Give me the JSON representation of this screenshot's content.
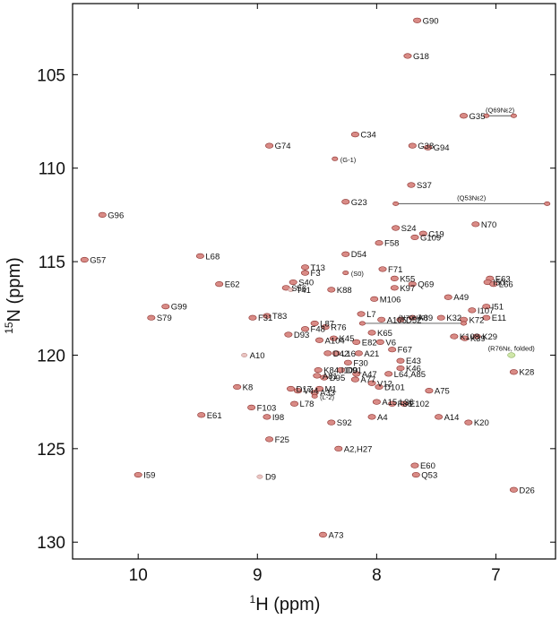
{
  "chart_data": {
    "type": "scatter",
    "title": "",
    "xlabel": "H (ppm)",
    "xlabel_sup": "1",
    "ylabel": "N (ppm)",
    "ylabel_sup": "15",
    "xlim": [
      10.55,
      6.5
    ],
    "ylim": [
      101.2,
      130.9
    ],
    "x_reversed": true,
    "y_reversed": true,
    "x_ticks": [
      10,
      9,
      8,
      7
    ],
    "y_ticks": [
      105,
      110,
      115,
      120,
      125,
      130
    ],
    "grid": false,
    "peaks": [
      {
        "label": "G90",
        "h": 7.66,
        "n": 102.1
      },
      {
        "label": "G18",
        "h": 7.74,
        "n": 104.0
      },
      {
        "label": "G35",
        "h": 7.27,
        "n": 107.2
      },
      {
        "label": "(Q69Nε2)",
        "h": 7.08,
        "n": 107.2,
        "style": "small",
        "pair_h": 6.85
      },
      {
        "label": "C34",
        "h": 8.18,
        "n": 108.2
      },
      {
        "label": "G74",
        "h": 8.9,
        "n": 108.8
      },
      {
        "label": "G38",
        "h": 7.7,
        "n": 108.8
      },
      {
        "label": "G94",
        "h": 7.57,
        "n": 108.9
      },
      {
        "label": "(G-1)",
        "h": 8.35,
        "n": 109.5,
        "style": "small"
      },
      {
        "label": "S37",
        "h": 7.71,
        "n": 110.9
      },
      {
        "label": "(Q53Nε2)",
        "h": 7.84,
        "n": 111.9,
        "style": "small",
        "pair_h": 6.57
      },
      {
        "label": "G23",
        "h": 8.26,
        "n": 111.8
      },
      {
        "label": "G96",
        "h": 10.3,
        "n": 112.5
      },
      {
        "label": "S24",
        "h": 7.84,
        "n": 113.2
      },
      {
        "label": "C19",
        "h": 7.61,
        "n": 113.5
      },
      {
        "label": "N70",
        "h": 7.17,
        "n": 113.0
      },
      {
        "label": "G109",
        "h": 7.68,
        "n": 113.7
      },
      {
        "label": "F58",
        "h": 7.98,
        "n": 114.0
      },
      {
        "label": "D54",
        "h": 8.26,
        "n": 114.6
      },
      {
        "label": "G57",
        "h": 10.45,
        "n": 114.9
      },
      {
        "label": "L68",
        "h": 9.48,
        "n": 114.7
      },
      {
        "label": "T13",
        "h": 8.6,
        "n": 115.3
      },
      {
        "label": "F71",
        "h": 7.95,
        "n": 115.4
      },
      {
        "label": "(S0)",
        "h": 8.26,
        "n": 115.6,
        "style": "small"
      },
      {
        "label": "F3",
        "h": 8.6,
        "n": 115.6
      },
      {
        "label": "K55",
        "h": 7.85,
        "n": 115.9
      },
      {
        "label": "E63",
        "h": 7.05,
        "n": 115.9
      },
      {
        "label": "S40",
        "h": 8.7,
        "n": 116.1
      },
      {
        "label": "Q69",
        "h": 7.7,
        "n": 116.2
      },
      {
        "label": "I50",
        "h": 7.07,
        "n": 116.1
      },
      {
        "label": "L66",
        "h": 7.02,
        "n": 116.2
      },
      {
        "label": "E62",
        "h": 9.32,
        "n": 116.2
      },
      {
        "label": "S56",
        "h": 8.76,
        "n": 116.4
      },
      {
        "label": "T41",
        "h": 8.72,
        "n": 116.5,
        "style": "faint"
      },
      {
        "label": "K88",
        "h": 8.38,
        "n": 116.5
      },
      {
        "label": "K97",
        "h": 7.85,
        "n": 116.4
      },
      {
        "label": "A49",
        "h": 7.4,
        "n": 116.9
      },
      {
        "label": "M106",
        "h": 8.02,
        "n": 117.0
      },
      {
        "label": "G99",
        "h": 9.77,
        "n": 117.4
      },
      {
        "label": "I107",
        "h": 7.2,
        "n": 117.6
      },
      {
        "label": "I51",
        "h": 7.08,
        "n": 117.4
      },
      {
        "label": "T83",
        "h": 8.92,
        "n": 117.9
      },
      {
        "label": "F31",
        "h": 9.04,
        "n": 118.0
      },
      {
        "label": "L7",
        "h": 8.13,
        "n": 117.8
      },
      {
        "label": "S79",
        "h": 9.89,
        "n": 118.0
      },
      {
        "label": "E11",
        "h": 7.08,
        "n": 118.0
      },
      {
        "label": "R76",
        "h": 8.43,
        "n": 118.5
      },
      {
        "label": "L87",
        "h": 8.52,
        "n": 118.3
      },
      {
        "label": "A105",
        "h": 7.96,
        "n": 118.1
      },
      {
        "label": "D52",
        "h": 7.8,
        "n": 118.1
      },
      {
        "label": "A89",
        "h": 7.7,
        "n": 118.0
      },
      {
        "label": "K32",
        "h": 7.46,
        "n": 118.0
      },
      {
        "label": "K72",
        "h": 7.27,
        "n": 118.1
      },
      {
        "label": "(N70Nδ2)",
        "h": 8.12,
        "n": 118.3,
        "style": "small",
        "pair_h": 7.27
      },
      {
        "label": "F48",
        "h": 8.6,
        "n": 118.6
      },
      {
        "label": "K65",
        "h": 8.04,
        "n": 118.8
      },
      {
        "label": "D93",
        "h": 8.74,
        "n": 118.9
      },
      {
        "label": "K45",
        "h": 8.36,
        "n": 119.1
      },
      {
        "label": "E82",
        "h": 8.17,
        "n": 119.3
      },
      {
        "label": "A104",
        "h": 8.48,
        "n": 119.2
      },
      {
        "label": "V6",
        "h": 7.97,
        "n": 119.3
      },
      {
        "label": "K108",
        "h": 7.35,
        "n": 119.0
      },
      {
        "label": "K29",
        "h": 7.16,
        "n": 119.0
      },
      {
        "label": "K39",
        "h": 7.26,
        "n": 119.1
      },
      {
        "label": "(R76Nε, folded)",
        "h": 6.87,
        "n": 120.0,
        "style": "green"
      },
      {
        "label": "D42",
        "h": 8.41,
        "n": 119.9
      },
      {
        "label": "L16",
        "h": 8.34,
        "n": 119.9
      },
      {
        "label": "A21",
        "h": 8.15,
        "n": 119.9
      },
      {
        "label": "F67",
        "h": 7.87,
        "n": 119.7
      },
      {
        "label": "A10",
        "h": 9.11,
        "n": 120.0,
        "style": "faint"
      },
      {
        "label": "K28",
        "h": 6.85,
        "n": 120.9
      },
      {
        "label": "F30",
        "h": 8.24,
        "n": 120.4
      },
      {
        "label": "E43",
        "h": 7.8,
        "n": 120.3
      },
      {
        "label": "K84,I100",
        "h": 8.49,
        "n": 120.8
      },
      {
        "label": "D91",
        "h": 8.3,
        "n": 120.8
      },
      {
        "label": "A81",
        "h": 8.5,
        "n": 121.1
      },
      {
        "label": "D95",
        "h": 8.44,
        "n": 121.2
      },
      {
        "label": "A47",
        "h": 8.17,
        "n": 121.0
      },
      {
        "label": "K46",
        "h": 7.8,
        "n": 120.7
      },
      {
        "label": "A77",
        "h": 8.18,
        "n": 121.3
      },
      {
        "label": "V12",
        "h": 8.04,
        "n": 121.5
      },
      {
        "label": "L64,A85",
        "h": 7.9,
        "n": 121.0
      },
      {
        "label": "K8",
        "h": 9.17,
        "n": 121.7
      },
      {
        "label": "M1",
        "h": 8.48,
        "n": 121.8
      },
      {
        "label": "D101",
        "h": 7.98,
        "n": 121.7
      },
      {
        "label": "D17",
        "h": 8.72,
        "n": 121.8
      },
      {
        "label": "V44",
        "h": 8.66,
        "n": 121.9
      },
      {
        "label": "A75",
        "h": 7.56,
        "n": 121.9
      },
      {
        "label": "A33",
        "h": 8.52,
        "n": 122.0
      },
      {
        "label": "(L-2)",
        "h": 8.52,
        "n": 122.2,
        "style": "small"
      },
      {
        "label": "A15,L36",
        "h": 8.0,
        "n": 122.5
      },
      {
        "label": "F86",
        "h": 7.87,
        "n": 122.6
      },
      {
        "label": "E102",
        "h": 7.77,
        "n": 122.6
      },
      {
        "label": "L78",
        "h": 8.69,
        "n": 122.6
      },
      {
        "label": "F103",
        "h": 9.05,
        "n": 122.8
      },
      {
        "label": "E61",
        "h": 9.47,
        "n": 123.2
      },
      {
        "label": "I98",
        "h": 8.92,
        "n": 123.3
      },
      {
        "label": "A4",
        "h": 8.04,
        "n": 123.3
      },
      {
        "label": "A14",
        "h": 7.48,
        "n": 123.3
      },
      {
        "label": "K20",
        "h": 7.23,
        "n": 123.6
      },
      {
        "label": "S92",
        "h": 8.38,
        "n": 123.6
      },
      {
        "label": "F25",
        "h": 8.9,
        "n": 124.5
      },
      {
        "label": "A2,H27",
        "h": 8.32,
        "n": 125.0
      },
      {
        "label": "E60",
        "h": 7.68,
        "n": 125.9
      },
      {
        "label": "I59",
        "h": 10.0,
        "n": 126.4
      },
      {
        "label": "Q53",
        "h": 7.67,
        "n": 126.4
      },
      {
        "label": "D9",
        "h": 8.98,
        "n": 126.5,
        "style": "faint"
      },
      {
        "label": "D26",
        "h": 6.85,
        "n": 127.2
      },
      {
        "label": "A73",
        "h": 8.45,
        "n": 129.6
      }
    ]
  }
}
